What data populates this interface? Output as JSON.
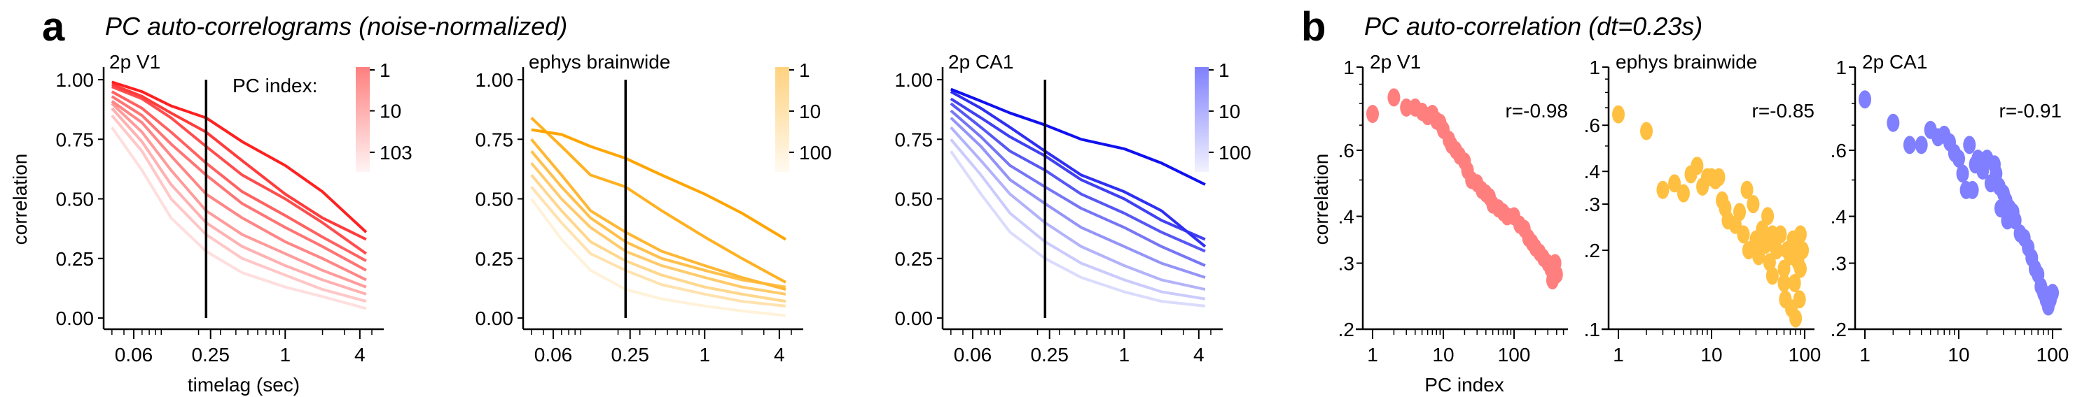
{
  "panel_a": {
    "letter": "a",
    "title": "PC auto-correlograms (noise-normalized)",
    "colorbar_title": "PC index:"
  },
  "panel_b": {
    "letter": "b",
    "title": "PC auto-correlation (dt=0.23s)"
  },
  "chart_data": [
    {
      "type": "line",
      "title": "2p V1",
      "xlabel": "timelag (sec)",
      "ylabel": "correlation",
      "xscale": "log",
      "xlim": [
        0.035,
        5
      ],
      "ylim": [
        0,
        1
      ],
      "xticks": [
        0.06,
        0.25,
        1,
        4
      ],
      "xtick_labels": [
        "0.06",
        "0.25",
        "1",
        "4"
      ],
      "yticks": [
        0,
        0.25,
        0.5,
        0.75,
        1
      ],
      "ytick_labels": [
        "0.00",
        "0.25",
        "0.50",
        "0.75",
        "1.00"
      ],
      "vline_x": 0.23,
      "color": "#ff2020",
      "colorbar": {
        "ticks": [
          1,
          10,
          103
        ],
        "labels": [
          "1",
          "10",
          "103"
        ],
        "max": 103
      },
      "x": [
        0.04,
        0.07,
        0.12,
        0.23,
        0.45,
        1,
        2,
        4.5
      ],
      "series": [
        {
          "pc": 1,
          "values": [
            0.99,
            0.95,
            0.89,
            0.84,
            0.74,
            0.64,
            0.53,
            0.36
          ]
        },
        {
          "pc": 2,
          "values": [
            0.98,
            0.93,
            0.86,
            0.78,
            0.66,
            0.52,
            0.42,
            0.33
          ]
        },
        {
          "pc": 3,
          "values": [
            0.97,
            0.92,
            0.84,
            0.72,
            0.6,
            0.5,
            0.4,
            0.27
          ]
        },
        {
          "pc": 5,
          "values": [
            0.95,
            0.88,
            0.78,
            0.65,
            0.53,
            0.43,
            0.34,
            0.24
          ]
        },
        {
          "pc": 8,
          "values": [
            0.93,
            0.85,
            0.73,
            0.6,
            0.48,
            0.38,
            0.3,
            0.2
          ]
        },
        {
          "pc": 12,
          "values": [
            0.91,
            0.82,
            0.68,
            0.52,
            0.42,
            0.32,
            0.25,
            0.16
          ]
        },
        {
          "pc": 20,
          "values": [
            0.9,
            0.78,
            0.62,
            0.45,
            0.35,
            0.27,
            0.2,
            0.13
          ]
        },
        {
          "pc": 35,
          "values": [
            0.88,
            0.74,
            0.56,
            0.4,
            0.3,
            0.22,
            0.16,
            0.1
          ]
        },
        {
          "pc": 60,
          "values": [
            0.85,
            0.7,
            0.5,
            0.35,
            0.25,
            0.18,
            0.12,
            0.07
          ]
        },
        {
          "pc": 103,
          "values": [
            0.8,
            0.62,
            0.42,
            0.28,
            0.19,
            0.13,
            0.09,
            0.04
          ]
        }
      ]
    },
    {
      "type": "line",
      "title": "ephys brainwide",
      "xlabel": "",
      "ylabel": "",
      "xscale": "log",
      "xlim": [
        0.035,
        5
      ],
      "ylim": [
        0,
        1
      ],
      "xticks": [
        0.06,
        0.25,
        1,
        4
      ],
      "xtick_labels": [
        "0.06",
        "0.25",
        "1",
        "4"
      ],
      "yticks": [
        0,
        0.25,
        0.5,
        0.75,
        1
      ],
      "ytick_labels": [
        "0.00",
        "0.25",
        "0.50",
        "0.75",
        "1.00"
      ],
      "vline_x": 0.23,
      "color": "#ffa500",
      "colorbar": {
        "ticks": [
          1,
          10,
          100
        ],
        "labels": [
          "1",
          "10",
          "100"
        ],
        "max": 100
      },
      "x": [
        0.04,
        0.07,
        0.12,
        0.23,
        0.45,
        1,
        2,
        4.5
      ],
      "series": [
        {
          "pc": 1,
          "values": [
            0.79,
            0.77,
            0.72,
            0.67,
            0.6,
            0.52,
            0.44,
            0.33
          ]
        },
        {
          "pc": 2,
          "values": [
            0.84,
            0.72,
            0.6,
            0.55,
            0.45,
            0.34,
            0.25,
            0.15
          ]
        },
        {
          "pc": 3,
          "values": [
            0.75,
            0.6,
            0.45,
            0.36,
            0.28,
            0.22,
            0.17,
            0.12
          ]
        },
        {
          "pc": 5,
          "values": [
            0.7,
            0.55,
            0.42,
            0.32,
            0.25,
            0.2,
            0.16,
            0.13
          ]
        },
        {
          "pc": 10,
          "values": [
            0.65,
            0.5,
            0.38,
            0.28,
            0.22,
            0.17,
            0.13,
            0.1
          ]
        },
        {
          "pc": 20,
          "values": [
            0.6,
            0.45,
            0.32,
            0.24,
            0.18,
            0.13,
            0.1,
            0.07
          ]
        },
        {
          "pc": 40,
          "values": [
            0.55,
            0.4,
            0.27,
            0.2,
            0.14,
            0.1,
            0.07,
            0.05
          ]
        },
        {
          "pc": 100,
          "values": [
            0.5,
            0.33,
            0.2,
            0.12,
            0.08,
            0.05,
            0.03,
            0.01
          ]
        }
      ]
    },
    {
      "type": "line",
      "title": "2p CA1",
      "xlabel": "",
      "ylabel": "",
      "xscale": "log",
      "xlim": [
        0.035,
        5
      ],
      "ylim": [
        0,
        1
      ],
      "xticks": [
        0.06,
        0.25,
        1,
        4
      ],
      "xtick_labels": [
        "0.06",
        "0.25",
        "1",
        "4"
      ],
      "yticks": [
        0,
        0.25,
        0.5,
        0.75,
        1
      ],
      "ytick_labels": [
        "0.00",
        "0.25",
        "0.50",
        "0.75",
        "1.00"
      ],
      "vline_x": 0.23,
      "color": "#1010f0",
      "colorbar": {
        "ticks": [
          1,
          10,
          100
        ],
        "labels": [
          "1",
          "10",
          "100"
        ],
        "max": 100
      },
      "x": [
        0.04,
        0.07,
        0.12,
        0.23,
        0.45,
        1,
        2,
        4.5
      ],
      "series": [
        {
          "pc": 1,
          "values": [
            0.96,
            0.91,
            0.86,
            0.81,
            0.75,
            0.71,
            0.65,
            0.56
          ]
        },
        {
          "pc": 2,
          "values": [
            0.95,
            0.88,
            0.8,
            0.7,
            0.6,
            0.53,
            0.45,
            0.3
          ]
        },
        {
          "pc": 3,
          "values": [
            0.92,
            0.84,
            0.76,
            0.68,
            0.58,
            0.5,
            0.41,
            0.33
          ]
        },
        {
          "pc": 5,
          "values": [
            0.9,
            0.8,
            0.7,
            0.62,
            0.52,
            0.44,
            0.36,
            0.28
          ]
        },
        {
          "pc": 10,
          "values": [
            0.87,
            0.76,
            0.64,
            0.55,
            0.46,
            0.38,
            0.3,
            0.22
          ]
        },
        {
          "pc": 20,
          "values": [
            0.84,
            0.72,
            0.58,
            0.48,
            0.38,
            0.3,
            0.23,
            0.17
          ]
        },
        {
          "pc": 40,
          "values": [
            0.8,
            0.66,
            0.52,
            0.4,
            0.3,
            0.22,
            0.16,
            0.12
          ]
        },
        {
          "pc": 70,
          "values": [
            0.75,
            0.6,
            0.44,
            0.32,
            0.23,
            0.16,
            0.11,
            0.08
          ]
        },
        {
          "pc": 100,
          "values": [
            0.7,
            0.52,
            0.36,
            0.25,
            0.17,
            0.11,
            0.07,
            0.05
          ]
        }
      ]
    },
    {
      "type": "scatter",
      "title": "2p V1",
      "xlabel": "PC index",
      "ylabel": "correlation",
      "xscale": "log",
      "yscale": "log",
      "ylim": [
        0.2,
        1
      ],
      "xlim": [
        0.8,
        500
      ],
      "xticks": [
        1,
        10,
        100
      ],
      "xtick_labels": [
        "1",
        "10",
        "100"
      ],
      "yticks": [
        0.2,
        0.3,
        0.4,
        0.6,
        1
      ],
      "ytick_labels": [
        ".2",
        ".3",
        ".4",
        ".6",
        "1"
      ],
      "annotation": "r=-0.98",
      "color": "#ff7f7f",
      "points": [
        [
          1,
          0.75
        ],
        [
          2,
          0.83
        ],
        [
          3,
          0.78
        ],
        [
          4,
          0.78
        ],
        [
          5,
          0.76
        ],
        [
          6,
          0.74
        ],
        [
          7,
          0.75
        ],
        [
          8,
          0.72
        ],
        [
          9,
          0.71
        ],
        [
          10,
          0.68
        ],
        [
          12,
          0.64
        ],
        [
          13,
          0.62
        ],
        [
          15,
          0.6
        ],
        [
          17,
          0.58
        ],
        [
          20,
          0.56
        ],
        [
          22,
          0.53
        ],
        [
          25,
          0.5
        ],
        [
          30,
          0.49
        ],
        [
          35,
          0.47
        ],
        [
          40,
          0.46
        ],
        [
          45,
          0.45
        ],
        [
          50,
          0.43
        ],
        [
          60,
          0.42
        ],
        [
          70,
          0.41
        ],
        [
          80,
          0.4
        ],
        [
          100,
          0.4
        ],
        [
          120,
          0.38
        ],
        [
          140,
          0.37
        ],
        [
          160,
          0.35
        ],
        [
          180,
          0.34
        ],
        [
          200,
          0.33
        ],
        [
          230,
          0.32
        ],
        [
          260,
          0.31
        ],
        [
          300,
          0.3
        ],
        [
          330,
          0.29
        ],
        [
          360,
          0.28
        ],
        [
          400,
          0.28
        ],
        [
          350,
          0.27
        ],
        [
          380,
          0.3
        ]
      ]
    },
    {
      "type": "scatter",
      "title": "ephys brainwide",
      "xlabel": "",
      "ylabel": "",
      "xscale": "log",
      "yscale": "log",
      "ylim": [
        0.1,
        1
      ],
      "xlim": [
        0.8,
        120
      ],
      "xticks": [
        1,
        10,
        100
      ],
      "xtick_labels": [
        "1",
        "10",
        "100"
      ],
      "yticks": [
        0.1,
        0.2,
        0.3,
        0.4,
        0.6,
        1
      ],
      "ytick_labels": [
        ".1",
        ".2",
        ".3",
        ".4",
        ".6",
        "1"
      ],
      "annotation": "r=-0.85",
      "color": "#ffbf40",
      "points": [
        [
          1,
          0.66
        ],
        [
          2,
          0.57
        ],
        [
          3,
          0.34
        ],
        [
          4,
          0.36
        ],
        [
          5,
          0.33
        ],
        [
          6,
          0.39
        ],
        [
          7,
          0.42
        ],
        [
          8,
          0.35
        ],
        [
          9,
          0.38
        ],
        [
          10,
          0.38
        ],
        [
          11,
          0.37
        ],
        [
          12,
          0.38
        ],
        [
          13,
          0.31
        ],
        [
          14,
          0.29
        ],
        [
          15,
          0.26
        ],
        [
          18,
          0.25
        ],
        [
          20,
          0.28
        ],
        [
          22,
          0.23
        ],
        [
          24,
          0.34
        ],
        [
          25,
          0.2
        ],
        [
          28,
          0.3
        ],
        [
          30,
          0.22
        ],
        [
          32,
          0.19
        ],
        [
          35,
          0.24
        ],
        [
          38,
          0.21
        ],
        [
          40,
          0.27
        ],
        [
          42,
          0.18
        ],
        [
          45,
          0.16
        ],
        [
          48,
          0.22
        ],
        [
          50,
          0.2
        ],
        [
          55,
          0.23
        ],
        [
          60,
          0.17
        ],
        [
          62,
          0.13
        ],
        [
          65,
          0.2
        ],
        [
          70,
          0.19
        ],
        [
          72,
          0.12
        ],
        [
          75,
          0.22
        ],
        [
          78,
          0.15
        ],
        [
          80,
          0.11
        ],
        [
          82,
          0.21
        ],
        [
          85,
          0.18
        ],
        [
          88,
          0.13
        ],
        [
          90,
          0.17
        ],
        [
          95,
          0.2
        ],
        [
          90,
          0.23
        ],
        [
          60,
          0.15
        ],
        [
          45,
          0.23
        ]
      ]
    },
    {
      "type": "scatter",
      "title": "2p CA1",
      "xlabel": "",
      "ylabel": "",
      "xscale": "log",
      "yscale": "log",
      "ylim": [
        0.2,
        1
      ],
      "xlim": [
        0.8,
        120
      ],
      "xticks": [
        1,
        10,
        100
      ],
      "xtick_labels": [
        "1",
        "10",
        "100"
      ],
      "yticks": [
        0.2,
        0.3,
        0.4,
        0.6,
        1
      ],
      "ytick_labels": [
        ".2",
        ".3",
        ".4",
        ".6",
        "1"
      ],
      "annotation": "r=-0.91",
      "color": "#7f7fff",
      "points": [
        [
          1,
          0.82
        ],
        [
          2,
          0.71
        ],
        [
          3,
          0.62
        ],
        [
          4,
          0.62
        ],
        [
          5,
          0.68
        ],
        [
          6,
          0.65
        ],
        [
          7,
          0.66
        ],
        [
          8,
          0.63
        ],
        [
          9,
          0.59
        ],
        [
          10,
          0.57
        ],
        [
          11,
          0.52
        ],
        [
          12,
          0.47
        ],
        [
          13,
          0.62
        ],
        [
          14,
          0.47
        ],
        [
          15,
          0.55
        ],
        [
          16,
          0.57
        ],
        [
          18,
          0.53
        ],
        [
          20,
          0.57
        ],
        [
          22,
          0.49
        ],
        [
          24,
          0.55
        ],
        [
          25,
          0.52
        ],
        [
          27,
          0.48
        ],
        [
          30,
          0.46
        ],
        [
          32,
          0.44
        ],
        [
          35,
          0.42
        ],
        [
          38,
          0.41
        ],
        [
          40,
          0.39
        ],
        [
          45,
          0.36
        ],
        [
          50,
          0.35
        ],
        [
          55,
          0.33
        ],
        [
          60,
          0.31
        ],
        [
          65,
          0.29
        ],
        [
          70,
          0.28
        ],
        [
          75,
          0.26
        ],
        [
          80,
          0.25
        ],
        [
          85,
          0.24
        ],
        [
          90,
          0.23
        ],
        [
          95,
          0.24
        ],
        [
          100,
          0.25
        ],
        [
          28,
          0.42
        ],
        [
          33,
          0.39
        ]
      ]
    }
  ]
}
